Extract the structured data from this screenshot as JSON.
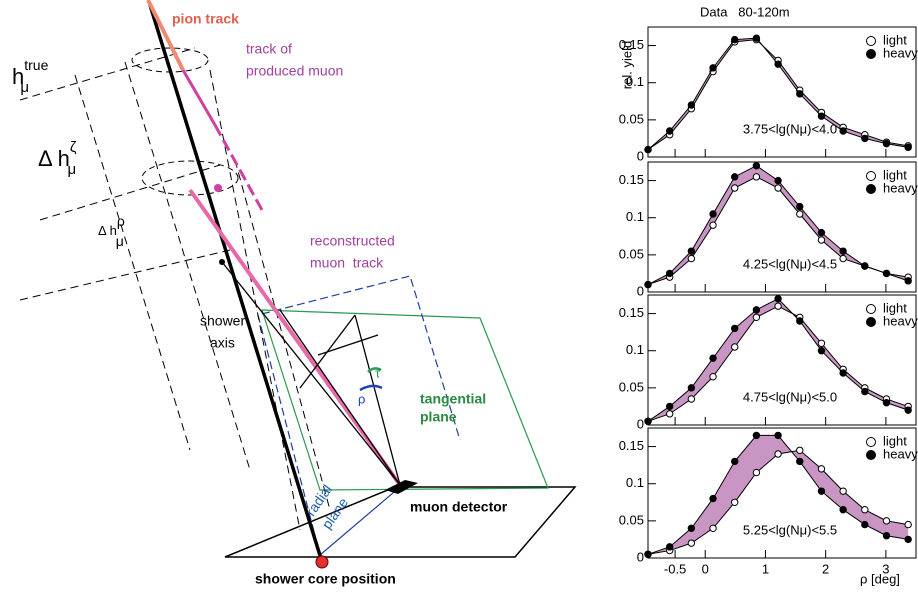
{
  "diagram": {
    "pion_track": "pion track",
    "produced_muon": [
      "track of",
      "produced muon"
    ],
    "reconstructed_muon": [
      "reconstructed",
      "muon  track"
    ],
    "shower_axis": [
      "shower",
      "axis"
    ],
    "tangential_plane": [
      "tangential",
      "plane"
    ],
    "radial_plane": [
      "radial",
      "plane"
    ],
    "muon_detector": "muon detector",
    "shower_core": "shower core position",
    "h_true": {
      "base": "h",
      "sub": "μ",
      "sup": "true"
    },
    "dh_zeta": {
      "base": "Δ h",
      "sub": "μ",
      "sup": "ζ"
    },
    "dh_rho": {
      "base": "Δ h",
      "sub": "μ",
      "sup": "ρ"
    },
    "rho": "ρ",
    "tau": "τ"
  },
  "chart_data": [
    {
      "type": "line",
      "title": "Data   80-120m",
      "ylabel": "rel. yield",
      "annotation": "3.75<lg(Nμ)<4.0",
      "band_color": "#c996c4",
      "x": [
        -0.95,
        -0.59,
        -0.23,
        0.13,
        0.49,
        0.85,
        1.21,
        1.57,
        1.93,
        2.29,
        2.65,
        3.01,
        3.37
      ],
      "series": [
        {
          "name": "light",
          "color": "#000000",
          "marker": "open",
          "values": [
            0.01,
            0.03,
            0.065,
            0.115,
            0.155,
            0.158,
            0.13,
            0.09,
            0.06,
            0.04,
            0.03,
            0.02,
            0.015
          ]
        },
        {
          "name": "heavy",
          "color": "#000000",
          "marker": "filled",
          "values": [
            0.01,
            0.035,
            0.07,
            0.12,
            0.158,
            0.16,
            0.125,
            0.085,
            0.055,
            0.035,
            0.025,
            0.018,
            0.013
          ]
        }
      ],
      "xlim": [
        -0.95,
        3.5
      ],
      "xticks": [
        -0.5,
        0,
        1,
        2,
        3
      ],
      "ylim": [
        0,
        0.175
      ],
      "yticks": [
        0,
        0.05,
        0.1,
        0.15
      ]
    },
    {
      "type": "line",
      "annotation": "4.25<lg(Nμ)<4.5",
      "band_color": "#c996c4",
      "x": [
        -0.95,
        -0.59,
        -0.23,
        0.13,
        0.49,
        0.85,
        1.21,
        1.57,
        1.93,
        2.29,
        2.65,
        3.01,
        3.37
      ],
      "series": [
        {
          "name": "light",
          "color": "#000000",
          "marker": "open",
          "values": [
            0.01,
            0.02,
            0.045,
            0.09,
            0.14,
            0.155,
            0.14,
            0.105,
            0.07,
            0.045,
            0.035,
            0.025,
            0.02
          ]
        },
        {
          "name": "heavy",
          "color": "#000000",
          "marker": "filled",
          "values": [
            0.01,
            0.025,
            0.055,
            0.105,
            0.155,
            0.17,
            0.15,
            0.115,
            0.08,
            0.055,
            0.035,
            0.025,
            0.015
          ]
        }
      ],
      "xlim": [
        -0.95,
        3.5
      ],
      "xticks": [
        -0.5,
        0,
        1,
        2,
        3
      ],
      "ylim": [
        0,
        0.175
      ],
      "yticks": [
        0,
        0.05,
        0.1,
        0.15
      ]
    },
    {
      "type": "line",
      "annotation": "4.75<lg(Nμ)<5.0",
      "band_color": "#c996c4",
      "x": [
        -0.95,
        -0.59,
        -0.23,
        0.13,
        0.49,
        0.85,
        1.21,
        1.57,
        1.93,
        2.29,
        2.65,
        3.01,
        3.37
      ],
      "series": [
        {
          "name": "light",
          "color": "#000000",
          "marker": "open",
          "values": [
            0.005,
            0.015,
            0.035,
            0.065,
            0.105,
            0.145,
            0.16,
            0.145,
            0.11,
            0.075,
            0.05,
            0.035,
            0.025
          ]
        },
        {
          "name": "heavy",
          "color": "#000000",
          "marker": "filled",
          "values": [
            0.005,
            0.025,
            0.05,
            0.09,
            0.13,
            0.155,
            0.17,
            0.14,
            0.1,
            0.07,
            0.045,
            0.03,
            0.02
          ]
        }
      ],
      "xlim": [
        -0.95,
        3.5
      ],
      "xticks": [
        -0.5,
        0,
        1,
        2,
        3
      ],
      "ylim": [
        0,
        0.175
      ],
      "yticks": [
        0,
        0.05,
        0.1,
        0.15
      ]
    },
    {
      "type": "line",
      "xlabel": "ρ [deg]",
      "annotation": "5.25<lg(Nμ)<5.5",
      "band_color": "#c996c4",
      "x": [
        -0.95,
        -0.59,
        -0.23,
        0.13,
        0.49,
        0.85,
        1.21,
        1.57,
        1.93,
        2.29,
        2.65,
        3.01,
        3.37
      ],
      "series": [
        {
          "name": "light",
          "color": "#000000",
          "marker": "open",
          "values": [
            0.005,
            0.01,
            0.02,
            0.04,
            0.075,
            0.115,
            0.14,
            0.145,
            0.12,
            0.09,
            0.065,
            0.05,
            0.045
          ]
        },
        {
          "name": "heavy",
          "color": "#000000",
          "marker": "filled",
          "values": [
            0.005,
            0.015,
            0.04,
            0.08,
            0.13,
            0.165,
            0.165,
            0.13,
            0.09,
            0.065,
            0.045,
            0.03,
            0.025
          ]
        }
      ],
      "xlim": [
        -0.95,
        3.5
      ],
      "xticks": [
        -0.5,
        0,
        1,
        2,
        3
      ],
      "ylim": [
        0,
        0.175
      ],
      "yticks": [
        0,
        0.05,
        0.1,
        0.15
      ]
    }
  ]
}
